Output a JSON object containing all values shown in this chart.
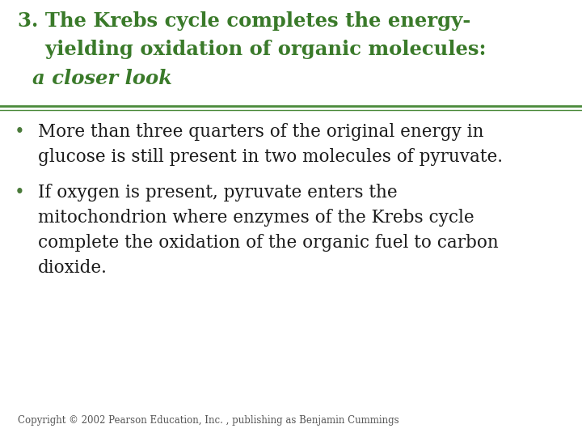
{
  "background_color": "#ffffff",
  "title_line1": "3. The Krebs cycle completes the energy-",
  "title_line2": "    yielding oxidation of organic molecules:",
  "title_line3": "a closer look",
  "title_color": "#3a7a2a",
  "separator_color": "#4a8a3a",
  "bullet1_line1": "More than three quarters of the original energy in",
  "bullet1_line2": "glucose is still present in two molecules of pyruvate.",
  "bullet2_line1": "If oxygen is present, pyruvate enters the",
  "bullet2_line2": "mitochondrion where enzymes of the Krebs cycle",
  "bullet2_line3": "complete the oxidation of the organic fuel to carbon",
  "bullet2_line4": "dioxide.",
  "bullet_color": "#1a1a1a",
  "bullet_dot_color": "#4a7a3a",
  "copyright_text": "Copyright © 2002 Pearson Education, Inc. , publishing as Benjamin Cummings",
  "copyright_color": "#555555",
  "title_fontsize": 17.5,
  "body_fontsize": 15.5,
  "copyright_fontsize": 8.5
}
